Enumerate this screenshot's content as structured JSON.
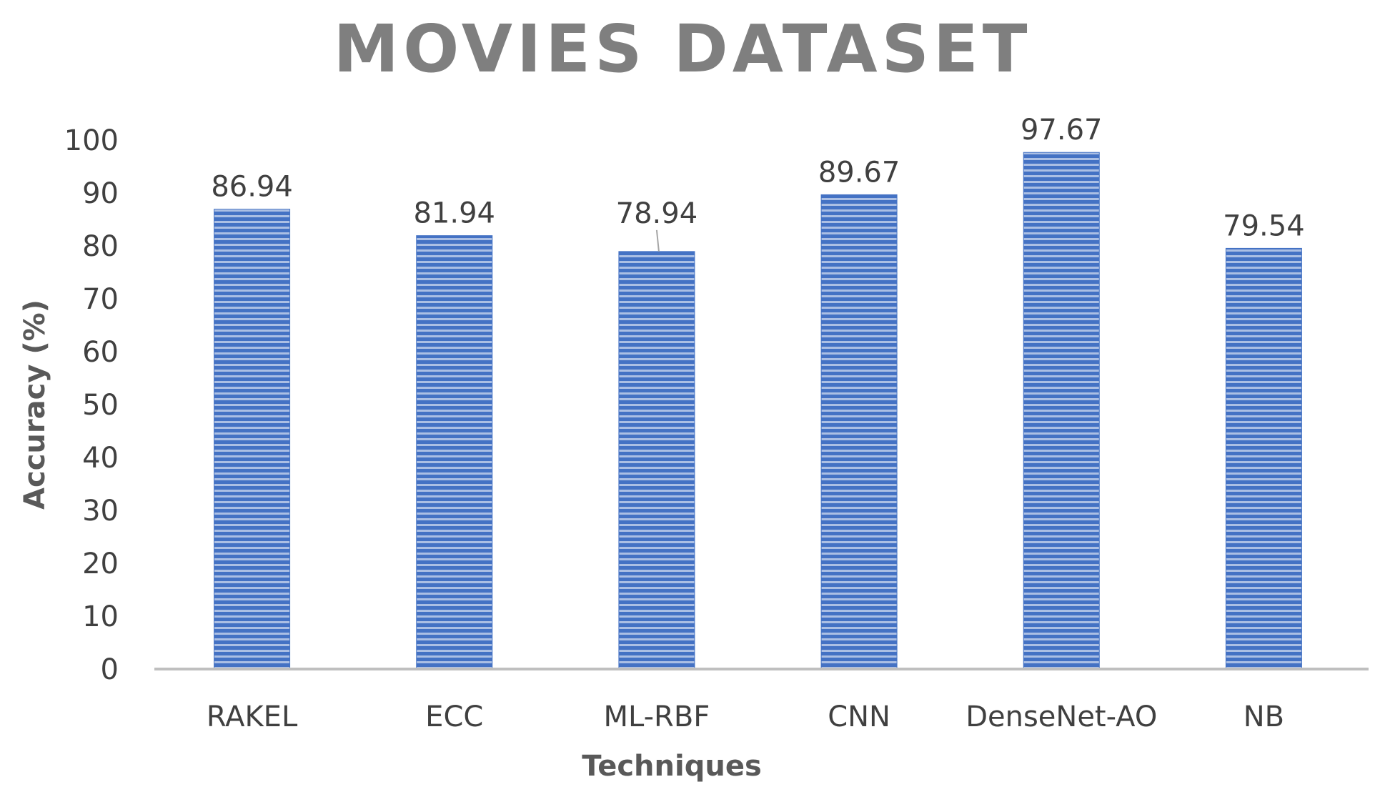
{
  "chart_data": {
    "type": "bar",
    "title": "MOVIES DATASET",
    "xlabel": "Techniques",
    "ylabel": "Accuracy (%)",
    "categories": [
      "RAKEL",
      "ECC",
      "ML-RBF",
      "CNN",
      "DenseNet-AO",
      "NB"
    ],
    "series": [
      {
        "values": [
          86.94,
          81.94,
          78.94,
          89.67,
          97.67,
          79.54
        ]
      }
    ],
    "data_labels": [
      "86.94",
      "81.94",
      "78.94",
      "89.67",
      "97.67",
      "79.54"
    ],
    "ylim": [
      0,
      100
    ],
    "yticks": [
      0,
      10,
      20,
      30,
      40,
      50,
      60,
      70,
      80,
      90,
      100
    ],
    "grid": false,
    "legend": "none",
    "bar_fill": "horizontal stripes",
    "colors": {
      "bar": "#4472c4",
      "bar_stripe": "#ffffff",
      "axis_line": "#bfbfbf",
      "title": "#7f7f7f",
      "text": "#404040",
      "axis_title": "#595959"
    }
  }
}
